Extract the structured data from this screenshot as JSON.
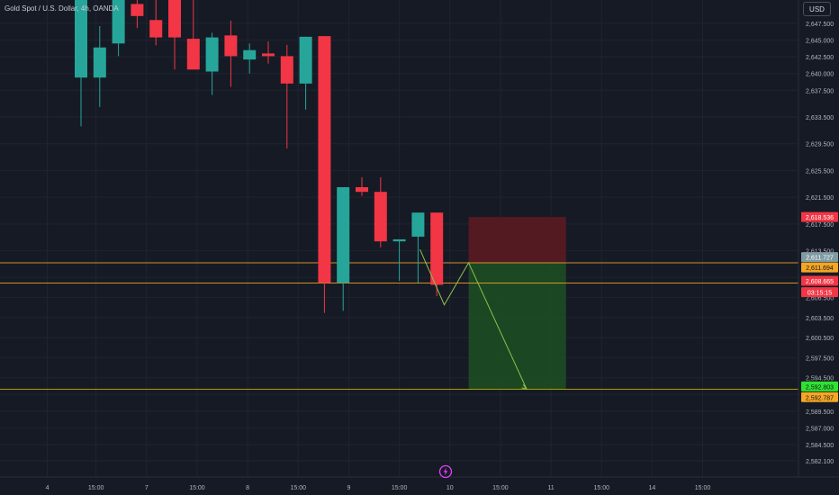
{
  "title": "Gold Spot / U.S. Dollar, 4h, OANDA",
  "currency_button": "USD",
  "colors": {
    "background": "#161a25",
    "grid": "#1f2430",
    "up": "#26a69a",
    "down": "#f23645",
    "orange_line": "#f5a623",
    "yellow_line": "#c9b000",
    "stop_zone": "#5b1b22",
    "target_zone": "#1d4d24",
    "projection_line": "#8bc34a",
    "axis_text": "#b2b5be"
  },
  "chart_data": {
    "type": "candlestick",
    "title": "Gold Spot / U.S. Dollar, 4h, OANDA",
    "ylim": [
      2581.0,
      2651.0
    ],
    "y_ticks": [
      "2,647.500",
      "2,645.000",
      "2,642.500",
      "2,640.000",
      "2,637.500",
      "2,633.500",
      "2,629.500",
      "2,625.500",
      "2,621.500",
      "2,617.500",
      "2,613.500",
      "2,609.500",
      "2,606.500",
      "2,603.500",
      "2,600.500",
      "2,597.500",
      "2,594.500",
      "2,592.000",
      "2,589.500",
      "2,587.000",
      "2,584.500",
      "2,582.100"
    ],
    "x_ticks": [
      {
        "label": "4",
        "slot": -1.8
      },
      {
        "label": "15:00",
        "slot": 0.8
      },
      {
        "label": "7",
        "slot": 3.5
      },
      {
        "label": "15:00",
        "slot": 6.2
      },
      {
        "label": "8",
        "slot": 8.9
      },
      {
        "label": "15:00",
        "slot": 11.6
      },
      {
        "label": "9",
        "slot": 14.3
      },
      {
        "label": "15:00",
        "slot": 17
      },
      {
        "label": "10",
        "slot": 19.7
      },
      {
        "label": "15:00",
        "slot": 22.4
      },
      {
        "label": "11",
        "slot": 25.1
      },
      {
        "label": "15:00",
        "slot": 27.8
      },
      {
        "label": "14",
        "slot": 30.5
      },
      {
        "label": "15:00",
        "slot": 33.2
      }
    ],
    "candles": [
      {
        "o": 2639.4,
        "h": 2651.0,
        "l": 2632.1,
        "c": 2651.0
      },
      {
        "o": 2639.4,
        "h": 2647.1,
        "l": 2635.0,
        "c": 2643.9
      },
      {
        "o": 2644.5,
        "h": 2651.0,
        "l": 2642.6,
        "c": 2651.0
      },
      {
        "o": 2650.4,
        "h": 2651.0,
        "l": 2646.8,
        "c": 2648.6
      },
      {
        "o": 2648.0,
        "h": 2651.0,
        "l": 2644.2,
        "c": 2645.4
      },
      {
        "o": 2651.0,
        "h": 2651.0,
        "l": 2640.6,
        "c": 2645.4
      },
      {
        "o": 2645.2,
        "h": 2651.0,
        "l": 2640.6,
        "c": 2640.6
      },
      {
        "o": 2640.3,
        "h": 2646.1,
        "l": 2636.8,
        "c": 2645.4
      },
      {
        "o": 2645.7,
        "h": 2647.9,
        "l": 2638.0,
        "c": 2642.6
      },
      {
        "o": 2642.1,
        "h": 2644.5,
        "l": 2640.0,
        "c": 2643.5
      },
      {
        "o": 2643.0,
        "h": 2644.8,
        "l": 2641.5,
        "c": 2642.6
      },
      {
        "o": 2642.6,
        "h": 2644.3,
        "l": 2628.8,
        "c": 2638.5
      },
      {
        "o": 2638.5,
        "h": 2645.5,
        "l": 2634.6,
        "c": 2645.5
      },
      {
        "o": 2645.6,
        "h": 2645.6,
        "l": 2604.2,
        "c": 2608.7
      },
      {
        "o": 2608.7,
        "h": 2623.0,
        "l": 2604.5,
        "c": 2623.0
      },
      {
        "o": 2623.0,
        "h": 2624.5,
        "l": 2621.7,
        "c": 2622.3
      },
      {
        "o": 2622.3,
        "h": 2624.5,
        "l": 2614.0,
        "c": 2614.9
      },
      {
        "o": 2614.9,
        "h": 2615.2,
        "l": 2609.0,
        "c": 2615.2
      },
      {
        "o": 2615.6,
        "h": 2619.2,
        "l": 2608.7,
        "c": 2619.2
      },
      {
        "o": 2619.2,
        "h": 2619.2,
        "l": 2606.7,
        "c": 2608.4
      }
    ],
    "lines": [
      {
        "name": "orange-level",
        "y": 2611.694,
        "color": "#f5a623",
        "label": "2,611.694"
      },
      {
        "name": "current-price",
        "y": 2608.665,
        "color": "#f5a623",
        "label": "2,608.665"
      },
      {
        "name": "target-level",
        "y": 2592.787,
        "color": "#c9b000",
        "label": "2,592.787"
      }
    ],
    "position": {
      "entry": 2611.727,
      "stop": 2618.536,
      "target": 2592.803,
      "start_slot": 20.7,
      "end_slot": 25.9
    },
    "projection": [
      {
        "slot": 18.1,
        "y": 2613.7
      },
      {
        "slot": 19.4,
        "y": 2605.4
      },
      {
        "slot": 20.7,
        "y": 2611.7
      },
      {
        "slot": 23.8,
        "y": 2592.8
      }
    ],
    "price_labels": [
      {
        "text": "2,618.536",
        "y": 2618.536,
        "bg": "#f23645",
        "fg": "#ffffff"
      },
      {
        "text": "2,611.727",
        "y": 2612.55,
        "bg": "#7f9ba3",
        "fg": "#ffffff"
      },
      {
        "text": "2,611.694",
        "y": 2611.0,
        "bg": "#f5a623",
        "fg": "#131722"
      },
      {
        "text": "2,608.665",
        "y": 2609.0,
        "bg": "#f23645",
        "fg": "#ffffff"
      },
      {
        "text": "03:15:15",
        "y": 2607.3,
        "bg": "#f23645",
        "fg": "#ffffff"
      },
      {
        "text": "2,592.803",
        "y": 2593.2,
        "bg": "#2ee32e",
        "fg": "#131722"
      },
      {
        "text": "2,592.787",
        "y": 2591.6,
        "bg": "#f5a623",
        "fg": "#131722"
      }
    ]
  }
}
